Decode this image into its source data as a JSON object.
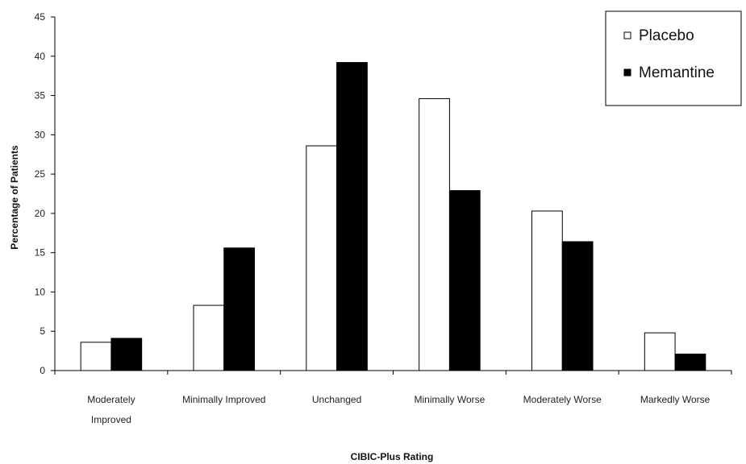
{
  "chart_data": {
    "type": "bar",
    "categories": [
      "Moderately Improved",
      "Minimally Improved",
      "Unchanged",
      "Minimally Worse",
      "Moderately Worse",
      "Markedly Worse"
    ],
    "category_lines": [
      [
        "Moderately",
        "Improved"
      ],
      [
        "Minimally Improved"
      ],
      [
        "Unchanged"
      ],
      [
        "Minimally Worse"
      ],
      [
        "Moderately Worse"
      ],
      [
        "Markedly Worse"
      ]
    ],
    "series": [
      {
        "name": "Placebo",
        "values": [
          3.6,
          8.3,
          28.6,
          34.6,
          20.3,
          4.8
        ],
        "color": "#ffffff"
      },
      {
        "name": "Memantine",
        "values": [
          4.1,
          15.6,
          39.2,
          22.9,
          16.4,
          2.1
        ],
        "color": "#000000"
      }
    ],
    "xlabel": "CIBIC-Plus Rating",
    "ylabel": "Percentage of Patients",
    "ylim": [
      0,
      45
    ],
    "yticks": [
      0,
      5,
      10,
      15,
      20,
      25,
      30,
      35,
      40,
      45
    ],
    "grid": false,
    "legend_position": "top-right"
  }
}
